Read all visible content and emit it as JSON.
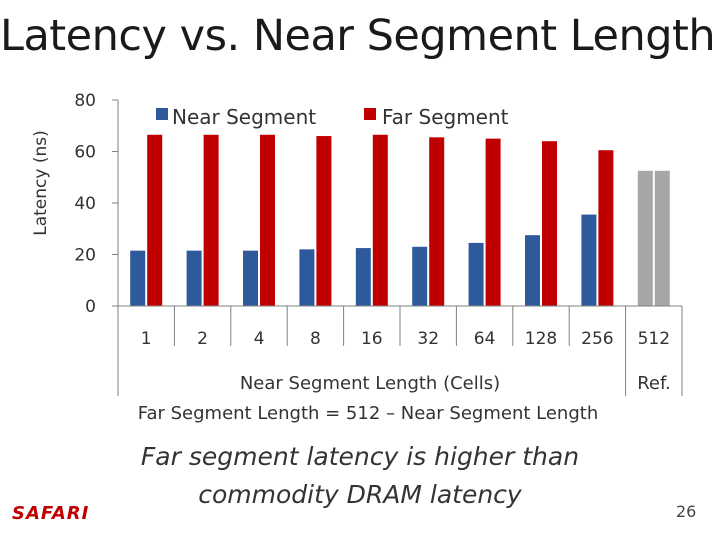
{
  "slide": {
    "title": "Latency vs. Near Segment Length",
    "footer": "Far segment latency is higher than commodity DRAM latency",
    "logo": "SAFARI",
    "page_number": "26"
  },
  "colors": {
    "near": "#2e5a9c",
    "far": "#c00000",
    "ref": "#a6a6a6"
  },
  "chart_data": {
    "type": "bar",
    "title": "",
    "ylabel": "Latency (ns)",
    "xlabel": "Near Segment Length (Cells)",
    "xlabel2": "Far Segment Length = 512 – Near Segment Length",
    "ref_label": "Ref.",
    "ylim": [
      0,
      80
    ],
    "yticks": [
      0,
      20,
      40,
      60,
      80
    ],
    "legend_position": "top",
    "categories": [
      "1",
      "2",
      "4",
      "8",
      "16",
      "32",
      "64",
      "128",
      "256",
      "512"
    ],
    "series": [
      {
        "name": "Near Segment",
        "values": [
          21.5,
          21.5,
          21.5,
          22,
          22.5,
          23,
          24.5,
          27.5,
          35.5,
          null
        ]
      },
      {
        "name": "Far Segment",
        "values": [
          66.5,
          66.5,
          66.5,
          66,
          66.5,
          65.5,
          65,
          64,
          60.5,
          null
        ]
      }
    ],
    "reference": {
      "category": "512",
      "values": [
        52.5,
        52.5
      ]
    }
  }
}
